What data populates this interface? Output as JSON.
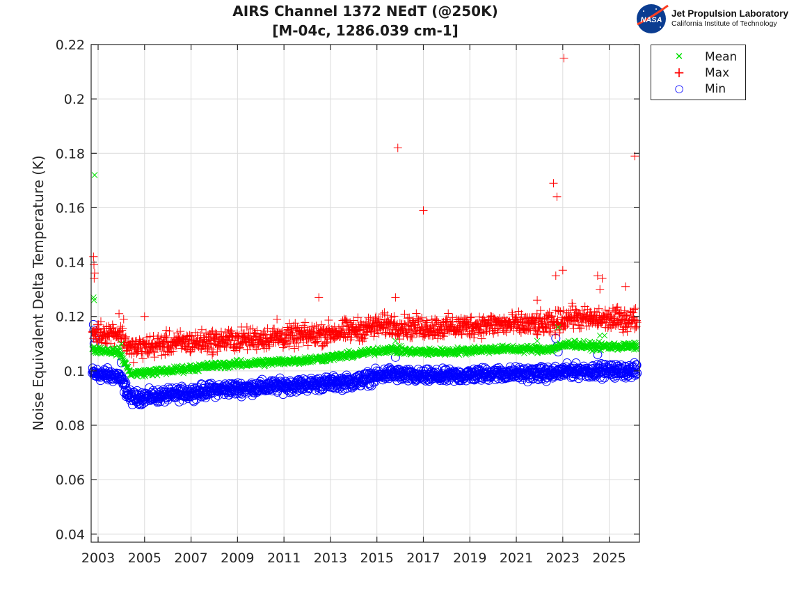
{
  "header": {
    "title_line1": "AIRS Channel 1372 NEdT (@250K)",
    "title_line2": "[M-04c, 1286.039 cm-1]",
    "logo_name": "Jet Propulsion Laboratory",
    "logo_subtitle": "California Institute of Technology",
    "logo_badge": "NASA"
  },
  "chart_data": {
    "type": "scatter",
    "title": "AIRS Channel 1372 NEdT (@250K) [M-04c, 1286.039 cm-1]",
    "xlabel": "",
    "ylabel": "Noise Equivalent Delta Temperature (K)",
    "xlim": [
      2002.7,
      2026.3
    ],
    "ylim": [
      0.037,
      0.22
    ],
    "xticks": [
      2003,
      2005,
      2007,
      2009,
      2011,
      2013,
      2015,
      2017,
      2019,
      2021,
      2023,
      2025
    ],
    "xtick_labels": [
      "2003",
      "2005",
      "2007",
      "2009",
      "2011",
      "2013",
      "2015",
      "2017",
      "2019",
      "2021",
      "2023",
      "2025"
    ],
    "yticks": [
      0.04,
      0.06,
      0.08,
      0.1,
      0.12,
      0.14,
      0.16,
      0.18,
      0.2,
      0.22
    ],
    "ytick_labels": [
      "0.04",
      "0.06",
      "0.08",
      "0.1",
      "0.12",
      "0.14",
      "0.16",
      "0.18",
      "0.2",
      "0.22"
    ],
    "grid": true,
    "legend_position": "outside-top-right",
    "series": [
      {
        "name": "Mean",
        "marker": "x",
        "color": "#00e000",
        "trend": [
          [
            2002.75,
            0.108
          ],
          [
            2003.9,
            0.107
          ],
          [
            2004.4,
            0.099
          ],
          [
            2006,
            0.1
          ],
          [
            2008,
            0.102
          ],
          [
            2010,
            0.103
          ],
          [
            2012,
            0.104
          ],
          [
            2014,
            0.106
          ],
          [
            2015.5,
            0.108
          ],
          [
            2016.5,
            0.107
          ],
          [
            2018,
            0.107
          ],
          [
            2020,
            0.108
          ],
          [
            2022.5,
            0.108
          ],
          [
            2023.3,
            0.11
          ],
          [
            2024,
            0.109
          ],
          [
            2026.2,
            0.109
          ]
        ],
        "spread": 0.0008,
        "outliers": [
          [
            2002.85,
            0.172
          ],
          [
            2002.8,
            0.127
          ],
          [
            2002.82,
            0.126
          ],
          [
            2004.0,
            0.11
          ],
          [
            2015.8,
            0.111
          ],
          [
            2019.2,
            0.109
          ],
          [
            2021.9,
            0.111
          ],
          [
            2022.8,
            0.116
          ],
          [
            2023.9,
            0.111
          ],
          [
            2024.6,
            0.113
          ],
          [
            2024.8,
            0.113
          ]
        ]
      },
      {
        "name": "Max",
        "marker": "+",
        "color": "#ff0000",
        "trend": [
          [
            2002.75,
            0.114
          ],
          [
            2003.9,
            0.114
          ],
          [
            2004.4,
            0.108
          ],
          [
            2006,
            0.11
          ],
          [
            2008,
            0.111
          ],
          [
            2010,
            0.112
          ],
          [
            2012,
            0.113
          ],
          [
            2014,
            0.115
          ],
          [
            2015.5,
            0.117
          ],
          [
            2016.5,
            0.116
          ],
          [
            2018,
            0.116
          ],
          [
            2020,
            0.117
          ],
          [
            2022.5,
            0.117
          ],
          [
            2023.3,
            0.12
          ],
          [
            2024,
            0.119
          ],
          [
            2026.2,
            0.119
          ]
        ],
        "spread": 0.0025,
        "outliers": [
          [
            2002.8,
            0.142
          ],
          [
            2002.82,
            0.139
          ],
          [
            2002.85,
            0.136
          ],
          [
            2002.83,
            0.134
          ],
          [
            2003.9,
            0.121
          ],
          [
            2004.1,
            0.119
          ],
          [
            2005.0,
            0.12
          ],
          [
            2010.7,
            0.119
          ],
          [
            2012.5,
            0.127
          ],
          [
            2015.9,
            0.182
          ],
          [
            2017.0,
            0.159
          ],
          [
            2015.8,
            0.127
          ],
          [
            2022.6,
            0.169
          ],
          [
            2022.75,
            0.164
          ],
          [
            2023.05,
            0.215
          ],
          [
            2022.7,
            0.135
          ],
          [
            2023.0,
            0.137
          ],
          [
            2021.9,
            0.126
          ],
          [
            2024.5,
            0.135
          ],
          [
            2024.7,
            0.134
          ],
          [
            2024.6,
            0.13
          ],
          [
            2025.7,
            0.131
          ],
          [
            2026.1,
            0.179
          ]
        ]
      },
      {
        "name": "Min",
        "marker": "o",
        "color": "#0000ff",
        "trend": [
          [
            2002.75,
            0.099
          ],
          [
            2003.9,
            0.098
          ],
          [
            2004.4,
            0.09
          ],
          [
            2006,
            0.091
          ],
          [
            2008,
            0.093
          ],
          [
            2010,
            0.094
          ],
          [
            2012,
            0.095
          ],
          [
            2014,
            0.096
          ],
          [
            2015.5,
            0.099
          ],
          [
            2016.5,
            0.098
          ],
          [
            2018,
            0.098
          ],
          [
            2020,
            0.099
          ],
          [
            2022.5,
            0.099
          ],
          [
            2023.3,
            0.1
          ],
          [
            2024,
            0.1
          ],
          [
            2026.2,
            0.1
          ]
        ],
        "spread": 0.0015,
        "outliers": [
          [
            2002.8,
            0.117
          ],
          [
            2002.82,
            0.115
          ],
          [
            2002.85,
            0.112
          ],
          [
            2002.83,
            0.11
          ],
          [
            2004.0,
            0.103
          ],
          [
            2015.8,
            0.105
          ],
          [
            2022.7,
            0.112
          ],
          [
            2022.75,
            0.109
          ],
          [
            2022.8,
            0.107
          ],
          [
            2024.5,
            0.106
          ]
        ]
      }
    ]
  }
}
